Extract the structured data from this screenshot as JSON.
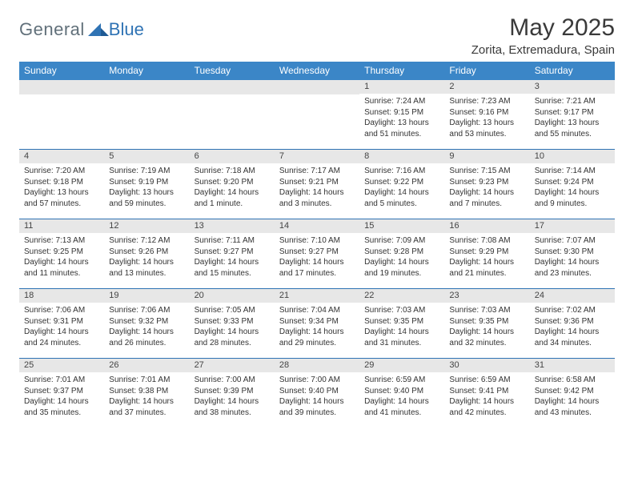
{
  "logo": {
    "general": "General",
    "blue": "Blue"
  },
  "title": "May 2025",
  "location": "Zorita, Extremadura, Spain",
  "colors": {
    "header_bg": "#3b86c7",
    "header_text": "#ffffff",
    "daynum_bg": "#e7e7e7",
    "rule": "#2f73b4",
    "logo_gray": "#61707a",
    "logo_blue": "#2f73b4"
  },
  "dow": [
    "Sunday",
    "Monday",
    "Tuesday",
    "Wednesday",
    "Thursday",
    "Friday",
    "Saturday"
  ],
  "weeks": [
    [
      null,
      null,
      null,
      null,
      {
        "n": "1",
        "sr": "7:24 AM",
        "ss": "9:15 PM",
        "dl": "13 hours and 51 minutes."
      },
      {
        "n": "2",
        "sr": "7:23 AM",
        "ss": "9:16 PM",
        "dl": "13 hours and 53 minutes."
      },
      {
        "n": "3",
        "sr": "7:21 AM",
        "ss": "9:17 PM",
        "dl": "13 hours and 55 minutes."
      }
    ],
    [
      {
        "n": "4",
        "sr": "7:20 AM",
        "ss": "9:18 PM",
        "dl": "13 hours and 57 minutes."
      },
      {
        "n": "5",
        "sr": "7:19 AM",
        "ss": "9:19 PM",
        "dl": "13 hours and 59 minutes."
      },
      {
        "n": "6",
        "sr": "7:18 AM",
        "ss": "9:20 PM",
        "dl": "14 hours and 1 minute."
      },
      {
        "n": "7",
        "sr": "7:17 AM",
        "ss": "9:21 PM",
        "dl": "14 hours and 3 minutes."
      },
      {
        "n": "8",
        "sr": "7:16 AM",
        "ss": "9:22 PM",
        "dl": "14 hours and 5 minutes."
      },
      {
        "n": "9",
        "sr": "7:15 AM",
        "ss": "9:23 PM",
        "dl": "14 hours and 7 minutes."
      },
      {
        "n": "10",
        "sr": "7:14 AM",
        "ss": "9:24 PM",
        "dl": "14 hours and 9 minutes."
      }
    ],
    [
      {
        "n": "11",
        "sr": "7:13 AM",
        "ss": "9:25 PM",
        "dl": "14 hours and 11 minutes."
      },
      {
        "n": "12",
        "sr": "7:12 AM",
        "ss": "9:26 PM",
        "dl": "14 hours and 13 minutes."
      },
      {
        "n": "13",
        "sr": "7:11 AM",
        "ss": "9:27 PM",
        "dl": "14 hours and 15 minutes."
      },
      {
        "n": "14",
        "sr": "7:10 AM",
        "ss": "9:27 PM",
        "dl": "14 hours and 17 minutes."
      },
      {
        "n": "15",
        "sr": "7:09 AM",
        "ss": "9:28 PM",
        "dl": "14 hours and 19 minutes."
      },
      {
        "n": "16",
        "sr": "7:08 AM",
        "ss": "9:29 PM",
        "dl": "14 hours and 21 minutes."
      },
      {
        "n": "17",
        "sr": "7:07 AM",
        "ss": "9:30 PM",
        "dl": "14 hours and 23 minutes."
      }
    ],
    [
      {
        "n": "18",
        "sr": "7:06 AM",
        "ss": "9:31 PM",
        "dl": "14 hours and 24 minutes."
      },
      {
        "n": "19",
        "sr": "7:06 AM",
        "ss": "9:32 PM",
        "dl": "14 hours and 26 minutes."
      },
      {
        "n": "20",
        "sr": "7:05 AM",
        "ss": "9:33 PM",
        "dl": "14 hours and 28 minutes."
      },
      {
        "n": "21",
        "sr": "7:04 AM",
        "ss": "9:34 PM",
        "dl": "14 hours and 29 minutes."
      },
      {
        "n": "22",
        "sr": "7:03 AM",
        "ss": "9:35 PM",
        "dl": "14 hours and 31 minutes."
      },
      {
        "n": "23",
        "sr": "7:03 AM",
        "ss": "9:35 PM",
        "dl": "14 hours and 32 minutes."
      },
      {
        "n": "24",
        "sr": "7:02 AM",
        "ss": "9:36 PM",
        "dl": "14 hours and 34 minutes."
      }
    ],
    [
      {
        "n": "25",
        "sr": "7:01 AM",
        "ss": "9:37 PM",
        "dl": "14 hours and 35 minutes."
      },
      {
        "n": "26",
        "sr": "7:01 AM",
        "ss": "9:38 PM",
        "dl": "14 hours and 37 minutes."
      },
      {
        "n": "27",
        "sr": "7:00 AM",
        "ss": "9:39 PM",
        "dl": "14 hours and 38 minutes."
      },
      {
        "n": "28",
        "sr": "7:00 AM",
        "ss": "9:40 PM",
        "dl": "14 hours and 39 minutes."
      },
      {
        "n": "29",
        "sr": "6:59 AM",
        "ss": "9:40 PM",
        "dl": "14 hours and 41 minutes."
      },
      {
        "n": "30",
        "sr": "6:59 AM",
        "ss": "9:41 PM",
        "dl": "14 hours and 42 minutes."
      },
      {
        "n": "31",
        "sr": "6:58 AM",
        "ss": "9:42 PM",
        "dl": "14 hours and 43 minutes."
      }
    ]
  ],
  "labels": {
    "sunrise": "Sunrise: ",
    "sunset": "Sunset: ",
    "daylight": "Daylight: "
  }
}
